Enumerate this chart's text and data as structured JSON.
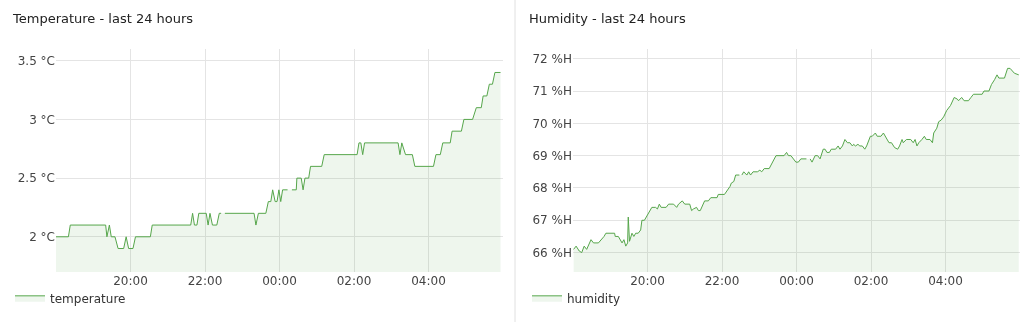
{
  "chart_data": [
    {
      "type": "area",
      "title": "Temperature - last 24 hours",
      "legend": "bottom",
      "grid": true,
      "marker": "none",
      "xlim": [
        "--01-01T18:00",
        "--01-02T06:00"
      ],
      "xticks": [
        {
          "value": "--01-01T20:00",
          "label": "20:00"
        },
        {
          "value": "--01-01T22:00",
          "label": "22:00"
        },
        {
          "value": "--01-02T00:00",
          "label": "00:00"
        },
        {
          "value": "--01-02T02:00",
          "label": "02:00"
        },
        {
          "value": "--01-02T04:00",
          "label": "04:00"
        }
      ],
      "ylim": [
        1.7,
        3.6
      ],
      "yticks": [
        {
          "value": 2,
          "label": "2 °C"
        },
        {
          "value": 2.5,
          "label": "2.5 °C"
        },
        {
          "value": 3,
          "label": "3 °C"
        },
        {
          "value": 3.5,
          "label": "3.5 °C"
        }
      ],
      "x": [
        "--01-01T18:00",
        "--01-01T18:20",
        "--01-01T18:23",
        "--01-01T19:20",
        "--01-01T19:22",
        "--01-01T19:26",
        "--01-01T19:29",
        "--01-01T19:35",
        "--01-01T19:40",
        "--01-01T19:49",
        "--01-01T19:53",
        "--01-01T19:57",
        "--01-01T20:04",
        "--01-01T20:08",
        "--01-01T20:32",
        "--01-01T20:35",
        "--01-01T21:37",
        "--01-01T21:40",
        "--01-01T21:43",
        "--01-01T21:47",
        "--01-01T21:50",
        "--01-01T22:02",
        "--01-01T22:05",
        "--01-01T22:08",
        "--01-01T22:12",
        "--01-01T22:19",
        "--01-01T22:23",
        "--01-01T22:26",
        "--01-01T22:29",
        "--01-01T22:32",
        "--01-01T23:19",
        "--01-01T23:22",
        "--01-01T23:26",
        "--01-01T23:38",
        "--01-01T23:42",
        "--01-01T23:46",
        "--01-01T23:49",
        "--01-01T23:53",
        "--01-01T23:56",
        "--01-01T23:59",
        "--01-02T00:02",
        "--01-02T00:05",
        "--01-02T00:13",
        "--01-02T00:17",
        "--01-02T00:20",
        "--01-02T00:27",
        "--01-02T00:28",
        "--01-02T00:35",
        "--01-02T00:38",
        "--01-02T00:41",
        "--01-02T00:47",
        "--01-02T00:50",
        "--01-02T01:08",
        "--01-02T01:12",
        "--01-02T02:05",
        "--01-02T02:08",
        "--01-02T02:11",
        "--01-02T02:14",
        "--01-02T02:17",
        "--01-02T03:11",
        "--01-02T03:14",
        "--01-02T03:17",
        "--01-02T03:23",
        "--01-02T03:34",
        "--01-02T03:38",
        "--01-02T04:08",
        "--01-02T04:12",
        "--01-02T04:19",
        "--01-02T04:23",
        "--01-02T04:35",
        "--01-02T04:38",
        "--01-02T04:53",
        "--01-02T04:57",
        "--01-02T05:11",
        "--01-02T05:17",
        "--01-02T05:25",
        "--01-02T05:28",
        "--01-02T05:34",
        "--01-02T05:38",
        "--01-02T05:43",
        "--01-02T05:47",
        "--01-02T05:56"
      ],
      "series": [
        {
          "name": "temperature",
          "color": "#56a64b",
          "values": [
            2.0,
            2.0,
            2.1,
            2.1,
            2.0,
            2.1,
            2.0,
            2.0,
            1.9,
            1.9,
            2.0,
            1.9,
            1.9,
            2.0,
            2.0,
            2.1,
            2.1,
            2.2,
            2.1,
            2.1,
            2.2,
            2.2,
            2.1,
            2.2,
            2.1,
            2.1,
            2.2,
            2.2,
            null,
            2.2,
            2.2,
            2.1,
            2.2,
            2.2,
            2.3,
            2.3,
            2.4,
            2.3,
            2.3,
            2.4,
            2.3,
            2.4,
            2.4,
            null,
            2.4,
            2.4,
            2.5,
            2.5,
            2.4,
            2.5,
            2.5,
            2.6,
            2.6,
            2.7,
            2.7,
            2.8,
            2.8,
            2.7,
            2.8,
            2.8,
            2.7,
            2.8,
            2.7,
            2.7,
            2.6,
            2.6,
            2.7,
            2.7,
            2.8,
            2.8,
            2.9,
            2.9,
            3.0,
            3.0,
            3.1,
            3.1,
            3.2,
            3.2,
            3.3,
            3.3,
            3.4,
            3.4
          ]
        }
      ]
    },
    {
      "type": "area",
      "title": "Humidity - last 24 hours",
      "legend": "bottom",
      "grid": true,
      "marker": "none",
      "xlim": [
        "--01-01T18:00",
        "--01-02T06:00"
      ],
      "xticks": [
        {
          "value": "--01-01T20:00",
          "label": "20:00"
        },
        {
          "value": "--01-01T22:00",
          "label": "22:00"
        },
        {
          "value": "--01-02T00:00",
          "label": "00:00"
        },
        {
          "value": "--01-02T02:00",
          "label": "02:00"
        },
        {
          "value": "--01-02T04:00",
          "label": "04:00"
        }
      ],
      "ylim": [
        65.4,
        72.3
      ],
      "yticks": [
        {
          "value": 66,
          "label": "66 %H"
        },
        {
          "value": 67,
          "label": "67 %H"
        },
        {
          "value": 68,
          "label": "68 %H"
        },
        {
          "value": 69,
          "label": "69 %H"
        },
        {
          "value": 70,
          "label": "70 %H"
        },
        {
          "value": 71,
          "label": "71 %H"
        },
        {
          "value": 72,
          "label": "72 %H"
        }
      ],
      "x": [
        "--01-01T18:01",
        "--01-01T18:05",
        "--01-01T18:10",
        "--01-01T18:14",
        "--01-01T18:18",
        "--01-01T18:22",
        "--01-01T18:29",
        "--01-01T18:33",
        "--01-01T18:41",
        "--01-01T18:50",
        "--01-01T18:53",
        "--01-01T19:07",
        "--01-01T19:08",
        "--01-01T19:13",
        "--01-01T19:19",
        "--01-01T19:22",
        "--01-01T19:25",
        "--01-01T19:28",
        "--01-01T19:29",
        "--01-01T19:31",
        "--01-01T19:35",
        "--01-01T19:38",
        "--01-01T19:41",
        "--01-01T19:45",
        "--01-01T19:49",
        "--01-01T19:51",
        "--01-01T19:55",
        "--01-01T20:07",
        "--01-01T20:13",
        "--01-01T20:16",
        "--01-01T20:19",
        "--01-01T20:22",
        "--01-01T20:30",
        "--01-01T20:34",
        "--01-01T20:42",
        "--01-01T20:47",
        "--01-01T20:50",
        "--01-01T20:56",
        "--01-01T21:00",
        "--01-01T21:08",
        "--01-01T21:11",
        "--01-01T21:14",
        "--01-01T21:19",
        "--01-01T21:22",
        "--01-01T21:25",
        "--01-01T21:32",
        "--01-01T21:38",
        "--01-01T21:42",
        "--01-01T21:52",
        "--01-01T21:54",
        "--01-01T22:04",
        "--01-01T22:13",
        "--01-01T22:15",
        "--01-01T22:19",
        "--01-01T22:22",
        "--01-01T22:28",
        "--01-01T22:30",
        "--01-01T22:32",
        "--01-01T22:35",
        "--01-01T22:40",
        "--01-01T22:43",
        "--01-01T22:46",
        "--01-01T22:50",
        "--01-01T22:57",
        "--01-01T23:01",
        "--01-01T23:04",
        "--01-01T23:08",
        "--01-01T23:16",
        "--01-01T23:27",
        "--01-01T23:40",
        "--01-01T23:44",
        "--01-01T23:47",
        "--01-01T23:51",
        "--01-01T23:59",
        "--01-02T00:03",
        "--01-02T00:07",
        "--01-02T00:16",
        "--01-02T00:19",
        "--01-02T00:22",
        "--01-02T00:25",
        "--01-02T00:30",
        "--01-02T00:34",
        "--01-02T00:38",
        "--01-02T00:43",
        "--01-02T00:46",
        "--01-02T00:49",
        "--01-02T00:53",
        "--01-02T00:56",
        "--01-02T01:03",
        "--01-02T01:07",
        "--01-02T01:10",
        "--01-02T01:14",
        "--01-02T01:18",
        "--01-02T01:22",
        "--01-02T01:26",
        "--01-02T01:30",
        "--01-02T01:32",
        "--01-02T01:35",
        "--01-02T01:39",
        "--01-02T01:42",
        "--01-02T01:46",
        "--01-02T01:50",
        "--01-02T01:53",
        "--01-02T01:59",
        "--01-02T02:02",
        "--01-02T02:07",
        "--01-02T02:10",
        "--01-02T02:16",
        "--01-02T02:20",
        "--01-02T02:29",
        "--01-02T02:33",
        "--01-02T02:38",
        "--01-02T02:43",
        "--01-02T02:46",
        "--01-02T02:50",
        "--01-02T02:52",
        "--01-02T02:57",
        "--01-02T03:04",
        "--01-02T03:08",
        "--01-02T03:11",
        "--01-02T03:14",
        "--01-02T03:17",
        "--01-02T03:22",
        "--01-02T03:26",
        "--01-02T03:29",
        "--01-02T03:35",
        "--01-02T03:39",
        "--01-02T03:41",
        "--01-02T03:46",
        "--01-02T03:49",
        "--01-02T03:53",
        "--01-02T03:57",
        "--01-02T04:02",
        "--01-02T04:08",
        "--01-02T04:14",
        "--01-02T04:19",
        "--01-02T04:21",
        "--01-02T04:26",
        "--01-02T04:30",
        "--01-02T04:37",
        "--01-02T04:41",
        "--01-02T04:45",
        "--01-02T04:59",
        "--01-02T05:02",
        "--01-02T05:10",
        "--01-02T05:14",
        "--01-02T05:19",
        "--01-02T05:23",
        "--01-02T05:26",
        "--01-02T05:35",
        "--01-02T05:40",
        "--01-02T05:44",
        "--01-02T05:51",
        "--01-02T05:58"
      ],
      "series": [
        {
          "name": "humidity",
          "color": "#56a64b",
          "values": [
            66.1,
            66.2,
            66.05,
            66.0,
            66.2,
            66.1,
            66.4,
            66.3,
            66.3,
            66.5,
            66.6,
            66.6,
            66.5,
            66.5,
            66.3,
            66.4,
            66.2,
            66.3,
            67.1,
            66.35,
            66.6,
            66.5,
            66.6,
            66.6,
            66.7,
            67.0,
            67.0,
            67.4,
            67.4,
            67.35,
            67.5,
            67.4,
            67.4,
            67.5,
            67.5,
            67.4,
            67.5,
            67.6,
            67.5,
            67.5,
            67.3,
            67.35,
            67.4,
            67.3,
            67.3,
            67.6,
            67.6,
            67.7,
            67.7,
            67.8,
            67.8,
            68.05,
            68.15,
            68.2,
            68.4,
            68.4,
            null,
            68.4,
            68.5,
            68.4,
            68.5,
            68.4,
            68.5,
            68.5,
            68.55,
            68.5,
            68.6,
            68.6,
            69.0,
            69.0,
            69.1,
            69.0,
            69.0,
            68.8,
            68.8,
            68.9,
            68.9,
            null,
            68.9,
            68.8,
            69.0,
            69.0,
            68.9,
            69.2,
            69.2,
            69.1,
            69.1,
            69.2,
            69.2,
            69.3,
            69.2,
            69.3,
            69.5,
            69.4,
            69.4,
            69.3,
            69.35,
            69.3,
            69.35,
            69.3,
            69.3,
            69.2,
            69.3,
            69.6,
            69.6,
            69.7,
            69.6,
            69.6,
            69.7,
            69.4,
            69.4,
            69.25,
            69.2,
            69.3,
            69.5,
            69.4,
            69.5,
            69.5,
            69.4,
            69.5,
            69.3,
            69.4,
            69.5,
            69.6,
            69.5,
            69.5,
            69.4,
            69.7,
            69.85,
            70.05,
            70.1,
            70.2,
            70.4,
            70.55,
            70.8,
            70.75,
            70.7,
            70.8,
            70.7,
            70.7,
            70.8,
            70.9,
            70.9,
            71.0,
            71.0,
            71.2,
            71.35,
            71.5,
            71.4,
            71.4,
            71.7,
            71.7,
            71.55,
            71.5
          ]
        }
      ]
    }
  ]
}
